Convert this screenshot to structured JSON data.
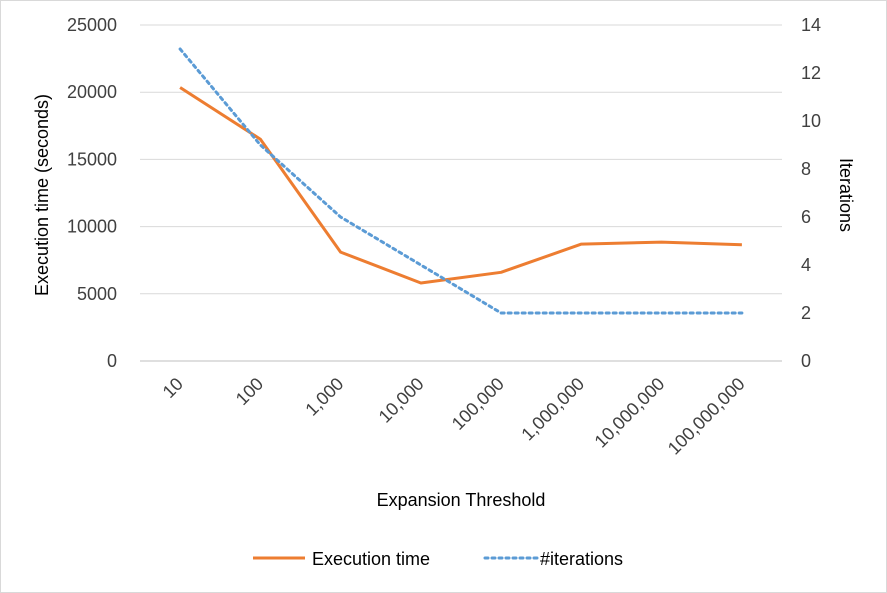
{
  "chart_data": {
    "type": "line",
    "title": "",
    "xlabel": "Expansion Threshold",
    "ylabel": "Execution time (seconds)",
    "y2label": "Iterations",
    "categories": [
      "10",
      "100",
      "1,000",
      "10,000",
      "100,000",
      "1,000,000",
      "10,000,000",
      "100,000,000"
    ],
    "ylim": [
      0,
      25000
    ],
    "yticks": [
      "0",
      "5000",
      "10000",
      "15000",
      "20000",
      "25000"
    ],
    "y2lim": [
      0,
      14
    ],
    "y2ticks": [
      "0",
      "2",
      "4",
      "6",
      "8",
      "10",
      "12",
      "14"
    ],
    "grid": true,
    "legend_position": "bottom",
    "series": [
      {
        "name": "Execution time",
        "axis": "left",
        "style": "solid",
        "color": "#ED7D31",
        "values": [
          20350,
          16500,
          8100,
          5800,
          6600,
          8700,
          8850,
          8650
        ]
      },
      {
        "name": "#iterations",
        "axis": "right",
        "style": "dotted",
        "color": "#5B9BD5",
        "values": [
          13,
          9,
          6,
          4,
          2,
          2,
          2,
          2
        ]
      }
    ]
  }
}
